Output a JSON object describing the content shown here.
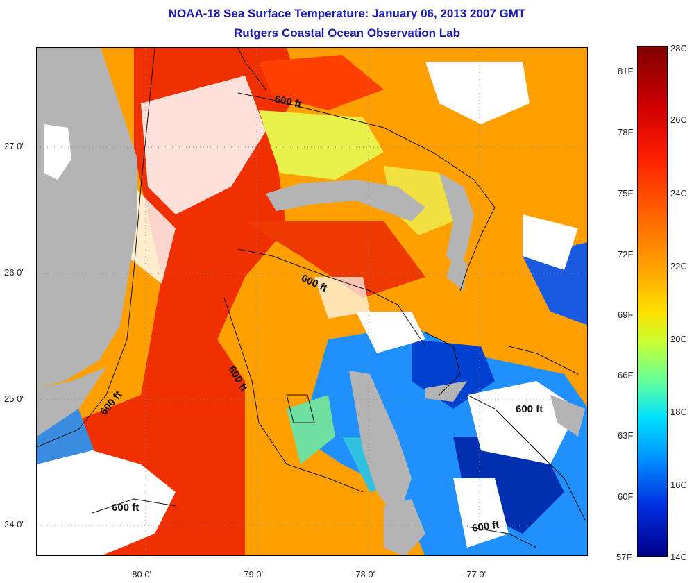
{
  "title": "NOAA-18 Sea Surface Temperature:  January 06, 2013 2007 GMT",
  "subtitle": "Rutgers Coastal Ocean Observation Lab",
  "map": {
    "x_ticks": [
      "-80 0'",
      "-79 0'",
      "-78 0'",
      "-77 0'"
    ],
    "y_ticks": [
      "27 0'",
      "26 0'",
      "25 0'",
      "24 0'"
    ],
    "contour_label": "600 ft",
    "colors": {
      "land": "#b4b4b4",
      "cloud": "#ffffff",
      "warm": "#ff3000",
      "orange": "#ffa000",
      "cool": "#00c8ff",
      "cold": "#0030c8"
    }
  },
  "colorbar": {
    "celsius": [
      "28C",
      "26C",
      "24C",
      "22C",
      "20C",
      "18C",
      "16C",
      "14C"
    ],
    "fahrenheit": [
      "81F",
      "78F",
      "75F",
      "72F",
      "69F",
      "66F",
      "63F",
      "60F",
      "57F"
    ]
  }
}
